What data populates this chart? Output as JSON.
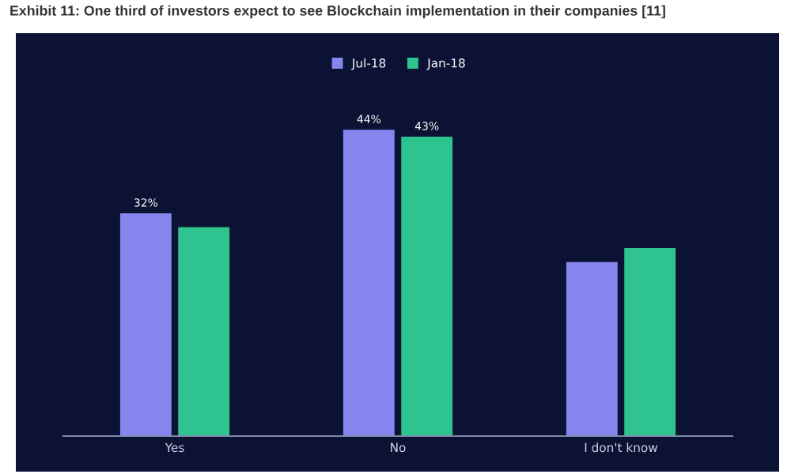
{
  "chart_data": {
    "type": "bar",
    "title": "Exhibit 11: One third of investors expect to see Blockchain implementation in their companies [11]",
    "categories": [
      "Yes",
      "No",
      "I don't know"
    ],
    "series": [
      {
        "name": "Jul-18",
        "color": "#8585f0",
        "values": [
          32,
          44,
          25
        ],
        "value_labels": [
          "32%",
          "44%",
          null
        ]
      },
      {
        "name": "Jan-18",
        "color": "#2fc48f",
        "values": [
          30,
          43,
          27
        ],
        "value_labels": [
          null,
          "43%",
          null
        ]
      }
    ],
    "legend": "top",
    "grid": false
  }
}
